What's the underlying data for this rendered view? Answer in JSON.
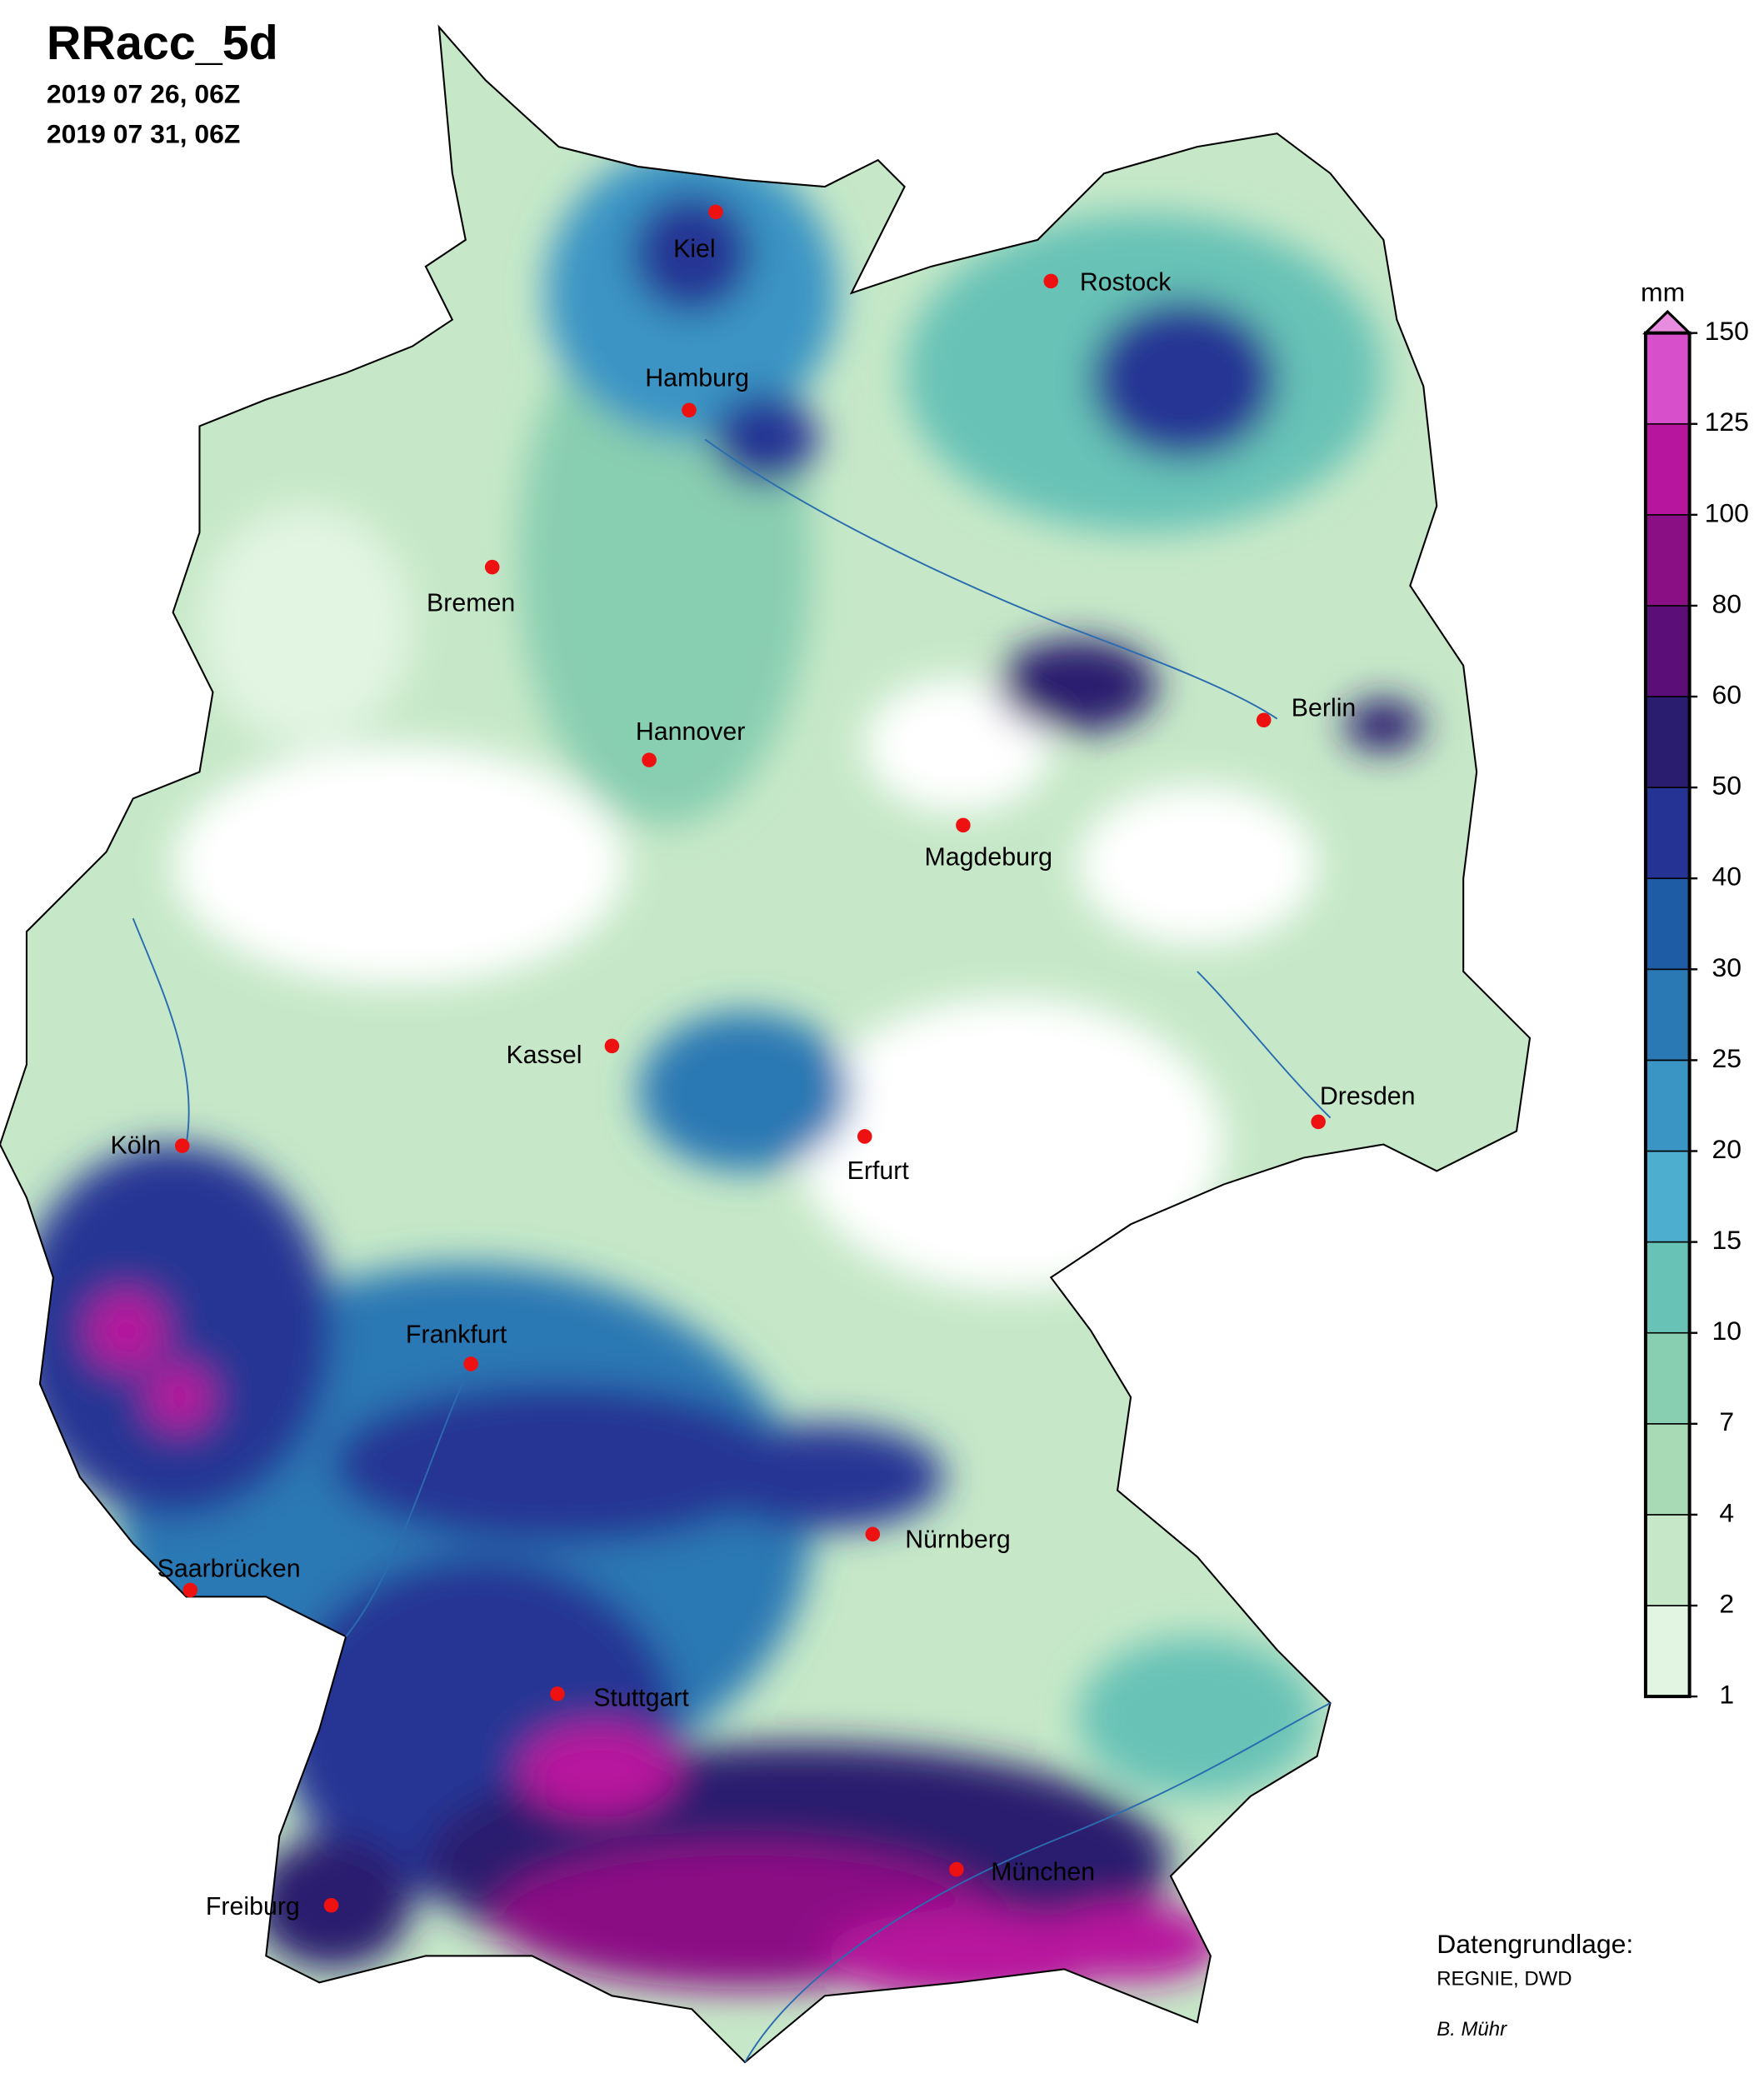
{
  "header": {
    "title": "RRacc_5d",
    "start": "2019 07 26, 06Z",
    "end": "2019 07 31, 06Z"
  },
  "cities": [
    "Kiel",
    "Rostock",
    "Hamburg",
    "Bremen",
    "Hannover",
    "Berlin",
    "Magdeburg",
    "Kassel",
    "Köln",
    "Erfurt",
    "Dresden",
    "Frankfurt",
    "Nürnberg",
    "Saarbrücken",
    "Stuttgart",
    "Freiburg",
    "München"
  ],
  "colorbar": {
    "unit": "mm",
    "ticks": [
      1,
      2,
      4,
      7,
      10,
      15,
      20,
      25,
      30,
      40,
      50,
      60,
      80,
      100,
      125,
      150
    ],
    "colors": [
      "#e2f4e2",
      "#c6e8c8",
      "#a8dab6",
      "#88ceb0",
      "#68c2b6",
      "#4eaed0",
      "#3a94c4",
      "#2a78b4",
      "#1f5ca6",
      "#253494",
      "#2a1c6e",
      "#5c0e78",
      "#8b0f84",
      "#b8159e",
      "#d84fcc"
    ],
    "extend_color": "#e88ce0"
  },
  "credits": {
    "source_label": "Datengrundlage:",
    "source": "REGNIE, DWD",
    "author": "B. Mühr"
  }
}
